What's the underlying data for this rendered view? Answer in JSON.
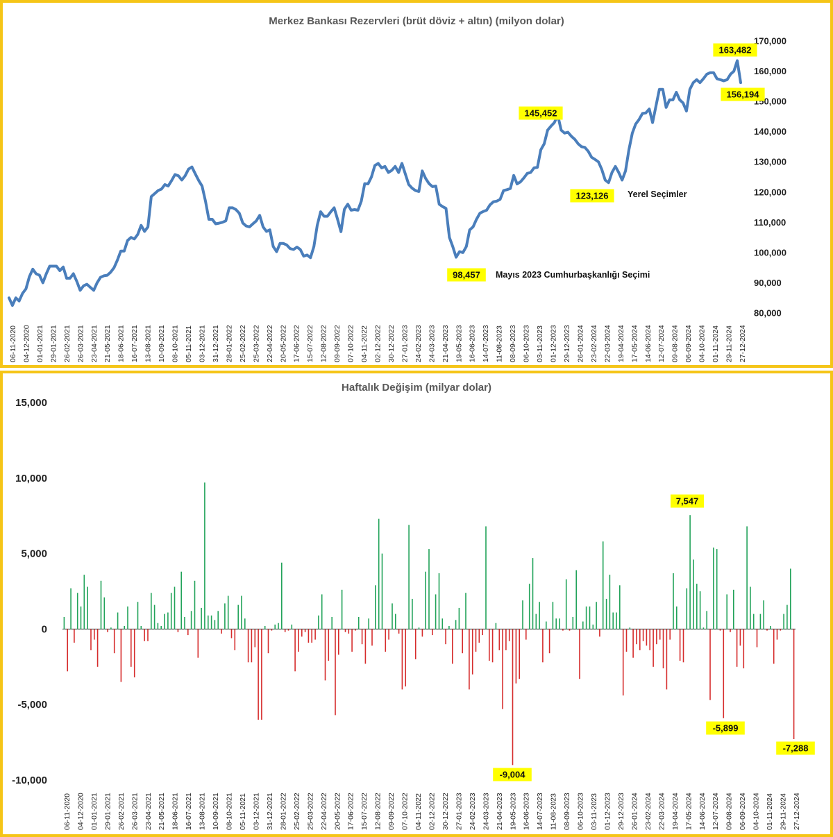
{
  "chart_data": [
    {
      "type": "line",
      "title": "Merkez Bankası Rezervleri (brüt döviz + altın) (milyon dolar)",
      "ylim": [
        80000,
        170000
      ],
      "yticks": [
        "80,000",
        "90,000",
        "100,000",
        "110,000",
        "120,000",
        "130,000",
        "140,000",
        "150,000",
        "160,000",
        "170,000"
      ],
      "y_axis_position": "right",
      "grid": false,
      "x_tick_labels": [
        "06-11-2020",
        "04-12-2020",
        "01-01-2021",
        "29-01-2021",
        "26-02-2021",
        "26-03-2021",
        "23-04-2021",
        "21-05-2021",
        "18-06-2021",
        "16-07-2021",
        "13-08-2021",
        "10-09-2021",
        "08-10-2021",
        "05-11-2021",
        "03-12-2021",
        "31-12-2021",
        "28-01-2022",
        "25-02-2022",
        "25-03-2022",
        "22-04-2022",
        "20-05-2022",
        "17-06-2022",
        "15-07-2022",
        "12-08-2022",
        "09-09-2022",
        "07-10-2022",
        "04-11-2022",
        "02-12-2022",
        "30-12-2022",
        "27-01-2023",
        "24-02-2023",
        "24-03-2023",
        "21-04-2023",
        "19-05-2023",
        "16-06-2023",
        "14-07-2023",
        "11-08-2023",
        "08-09-2023",
        "06-10-2023",
        "03-11-2023",
        "01-12-2023",
        "29-12-2023",
        "26-01-2024",
        "23-02-2024",
        "22-03-2024",
        "19-04-2024",
        "17-05-2024",
        "14-06-2024",
        "12-07-2024",
        "09-08-2024",
        "06-09-2024",
        "04-10-2024",
        "01-11-2024",
        "29-11-2024",
        "27-12-2024"
      ],
      "series": [
        {
          "color": "#4a7ebb",
          "values": [
            85000,
            82500,
            85000,
            84000,
            86500,
            88000,
            92000,
            94500,
            93000,
            92500,
            90000,
            93000,
            95500,
            95500,
            95500,
            94000,
            95200,
            91500,
            91500,
            93000,
            90500,
            87500,
            89000,
            89500,
            88500,
            87500,
            90000,
            91800,
            92300,
            92500,
            93500,
            95000,
            97500,
            100500,
            100500,
            104000,
            105000,
            104500,
            106000,
            109000,
            107000,
            108500,
            118500,
            119500,
            120500,
            121000,
            122500,
            122000,
            123800,
            125800,
            125400,
            124000,
            125400,
            127600,
            128300,
            126000,
            123800,
            122000,
            117000,
            111000,
            111000,
            109500,
            109700,
            110000,
            110500,
            114800,
            114800,
            114200,
            113000,
            109800,
            108800,
            108500,
            109500,
            110500,
            112300,
            108500,
            107000,
            107500,
            102000,
            100300,
            103000,
            103000,
            102500,
            101300,
            101000,
            101800,
            101000,
            98800,
            99200,
            98300,
            102000,
            109000,
            113500,
            112000,
            112000,
            113500,
            114800,
            111000,
            106900,
            114300,
            116000,
            114000,
            114200,
            114000,
            117000,
            122800,
            122700,
            125000,
            128800,
            129500,
            128000,
            128500,
            126500,
            127200,
            128500,
            126500,
            129500,
            126000,
            122500,
            121300,
            120500,
            120200,
            127000,
            124500,
            122800,
            121800,
            122000,
            116000,
            115200,
            114600,
            105000,
            102000,
            98457,
            100300,
            100000,
            102000,
            107500,
            108500,
            111000,
            113000,
            113600,
            114000,
            115800,
            116800,
            117000,
            117600,
            120500,
            120800,
            121200,
            125500,
            122700,
            123400,
            124700,
            126200,
            126500,
            128000,
            128200,
            134000,
            136000,
            140500,
            141800,
            143000,
            145452,
            140500,
            139500,
            139800,
            138500,
            137500,
            136000,
            135000,
            134800,
            133500,
            131500,
            130800,
            130000,
            127500,
            124000,
            123126,
            126500,
            128500,
            126500,
            124000,
            127000,
            134000,
            139500,
            142500,
            144000,
            146000,
            146200,
            147500,
            143000,
            148500,
            154000,
            154000,
            148000,
            150500,
            150500,
            153000,
            150500,
            149500,
            146800,
            154000,
            156200,
            157200,
            156200,
            157500,
            159000,
            159500,
            159500,
            157500,
            157200,
            156800,
            157200,
            159000,
            160000,
            163482,
            156194
          ]
        }
      ],
      "annotations": [
        {
          "text": "163,482"
        },
        {
          "text": "156,194"
        },
        {
          "text": "145,452"
        },
        {
          "text": "123,126"
        },
        {
          "text": "98,457"
        },
        {
          "text": "Yerel Seçimler"
        },
        {
          "text": "Mayıs 2023 Cumhurbaşkanlığı Seçimi"
        }
      ]
    },
    {
      "type": "bar",
      "title": "Haftalık Değişim (milyar dolar)",
      "ylim": [
        -10000,
        15000
      ],
      "yticks": [
        "-10,000",
        "-5,000",
        "0",
        "5,000",
        "10,000",
        "15,000"
      ],
      "y_axis_position": "left",
      "positive_color": "#22a35a",
      "negative_color": "#d62c2c",
      "x_tick_labels": [
        "06-11-2020",
        "04-12-2020",
        "01-01-2021",
        "29-01-2021",
        "26-02-2021",
        "26-03-2021",
        "23-04-2021",
        "21-05-2021",
        "18-06-2021",
        "16-07-2021",
        "13-08-2021",
        "10-09-2021",
        "08-10-2021",
        "05-11-2021",
        "03-12-2021",
        "31-12-2021",
        "28-01-2022",
        "25-02-2022",
        "25-03-2022",
        "22-04-2022",
        "20-05-2022",
        "17-06-2022",
        "15-07-2022",
        "12-08-2022",
        "09-09-2022",
        "07-10-2022",
        "04-11-2022",
        "02-12-2022",
        "30-12-2022",
        "27-01-2023",
        "24-02-2023",
        "24-03-2023",
        "21-04-2023",
        "19-05-2023",
        "16-06-2023",
        "14-07-2023",
        "11-08-2023",
        "08-09-2023",
        "06-10-2023",
        "03-11-2023",
        "01-12-2023",
        "29-12-2023",
        "26-01-2024",
        "23-02-2024",
        "22-03-2024",
        "19-04-2024",
        "17-05-2024",
        "14-06-2024",
        "12-07-2024",
        "09-08-2024",
        "06-09-2024",
        "04-10-2024",
        "01-11-2024",
        "29-11-2024",
        "27-12-2024"
      ],
      "values": [
        800,
        -2800,
        2700,
        -900,
        2400,
        1500,
        3600,
        2800,
        -1400,
        -700,
        -2500,
        3200,
        2100,
        -200,
        100,
        -1600,
        1100,
        -3500,
        200,
        1500,
        -2500,
        -3200,
        1800,
        200,
        -800,
        -800,
        2400,
        1600,
        400,
        200,
        1000,
        1100,
        2400,
        2800,
        -200,
        3800,
        800,
        -400,
        1200,
        3200,
        -1900,
        1400,
        9700,
        900,
        900,
        600,
        1200,
        -300,
        1700,
        2200,
        -600,
        -1400,
        1600,
        2200,
        700,
        -2200,
        -2200,
        -1200,
        -6000,
        -6000,
        200,
        -1600,
        -100,
        300,
        400,
        4400,
        -200,
        -100,
        300,
        -2800,
        -1500,
        -500,
        -200,
        -900,
        -900,
        -700,
        900,
        2300,
        -3400,
        -2100,
        800,
        -5700,
        -1700,
        2600,
        -200,
        -300,
        -1500,
        -100,
        800,
        -1000,
        -2300,
        700,
        -1100,
        2900,
        7300,
        5000,
        -1500,
        -700,
        1700,
        1000,
        -300,
        -4000,
        -3800,
        6900,
        2000,
        -2000,
        100,
        -500,
        3800,
        5300,
        -400,
        2300,
        3700,
        700,
        -1000,
        200,
        -2300,
        600,
        1400,
        -1600,
        2400,
        -4000,
        -3000,
        -1500,
        -900,
        -400,
        6800,
        -2100,
        -2200,
        400,
        -1400,
        -5300,
        -1400,
        -800,
        -9004,
        -3600,
        -3300,
        1900,
        -700,
        3000,
        4700,
        1000,
        1800,
        -2200,
        500,
        -1600,
        1800,
        700,
        700,
        -100,
        3300,
        -100,
        800,
        3900,
        -3300,
        500,
        1500,
        1500,
        300,
        1800,
        -500,
        5800,
        2000,
        3600,
        1100,
        1100,
        2900,
        -4400,
        -1500,
        100,
        -1900,
        -1000,
        -1400,
        -800,
        -1100,
        -1400,
        -2500,
        -1000,
        -700,
        -2600,
        -4000,
        -700,
        3700,
        1500,
        -2100,
        -2200,
        2700,
        7547,
        4600,
        3000,
        2500,
        100,
        1200,
        -4700,
        5400,
        5300,
        -100,
        -5899,
        2300,
        -200,
        2600,
        -2500,
        -1100,
        -2600,
        6800,
        2800,
        1000,
        -1200,
        1000,
        1900,
        -100,
        200,
        -2300,
        -700,
        -100,
        1000,
        1600,
        4000,
        -7288
      ],
      "annotations": [
        {
          "text": "7,547"
        },
        {
          "text": "-5,899"
        },
        {
          "text": "-7,288"
        },
        {
          "text": "-9,004"
        }
      ]
    }
  ]
}
